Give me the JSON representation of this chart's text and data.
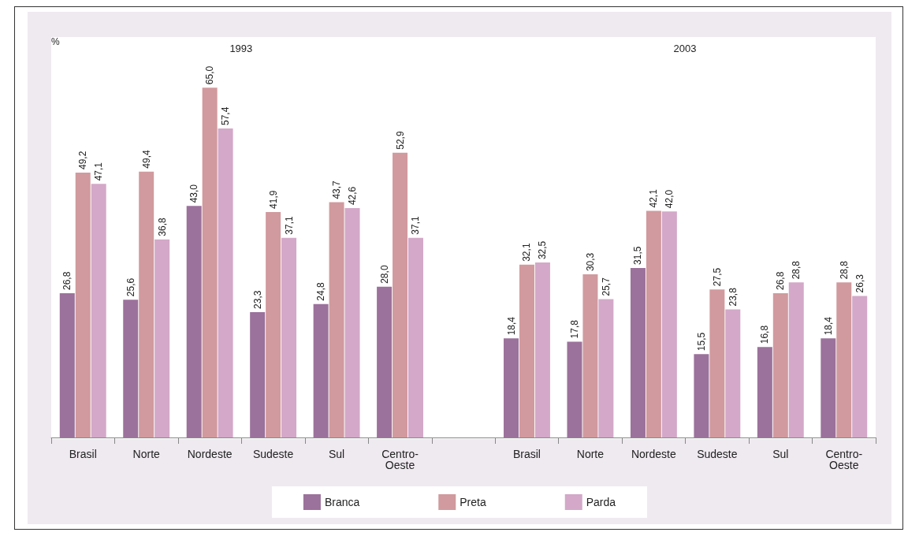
{
  "chart_data": {
    "type": "bar",
    "ylabel": "%",
    "annotations": [
      "1993",
      "2003"
    ],
    "categories": [
      "Brasil",
      "Norte",
      "Nordeste",
      "Sudeste",
      "Sul",
      "Centro-Oeste",
      null,
      "Brasil",
      "Norte",
      "Nordeste",
      "Sudeste",
      "Sul",
      "Centro-Oeste"
    ],
    "series": [
      {
        "name": "Branca",
        "color": "#9b729b",
        "values": [
          26.8,
          25.6,
          43.0,
          23.3,
          24.8,
          28.0,
          null,
          18.4,
          17.8,
          31.5,
          15.5,
          16.8,
          18.4
        ],
        "value_labels": [
          "26,8",
          "25,6",
          "43,0",
          "23,3",
          "24,8",
          "28,0",
          null,
          "18,4",
          "17,8",
          "31,5",
          "15,5",
          "16,8",
          "18,4"
        ]
      },
      {
        "name": "Preta",
        "color": "#d19a9e",
        "values": [
          49.2,
          49.4,
          65.0,
          41.9,
          43.7,
          52.9,
          null,
          32.1,
          30.3,
          42.1,
          27.5,
          26.8,
          28.8
        ],
        "value_labels": [
          "49,2",
          "49,4",
          "65,0",
          "41,9",
          "43,7",
          "52,9",
          null,
          "32,1",
          "30,3",
          "42,1",
          "27,5",
          "26,8",
          "28,8"
        ]
      },
      {
        "name": "Parda",
        "color": "#d3a8c8",
        "values": [
          47.1,
          36.8,
          57.4,
          37.1,
          42.6,
          37.1,
          null,
          32.5,
          25.7,
          42.0,
          23.8,
          28.8,
          26.3
        ],
        "value_labels": [
          "47,1",
          "36,8",
          "57,4",
          "37,1",
          "42,6",
          "37,1",
          null,
          "32,5",
          "25,7",
          "42,0",
          "23,8",
          "28,8",
          "26,3"
        ]
      }
    ],
    "legend": "bottom",
    "grid": false,
    "tick_labels": "x"
  }
}
